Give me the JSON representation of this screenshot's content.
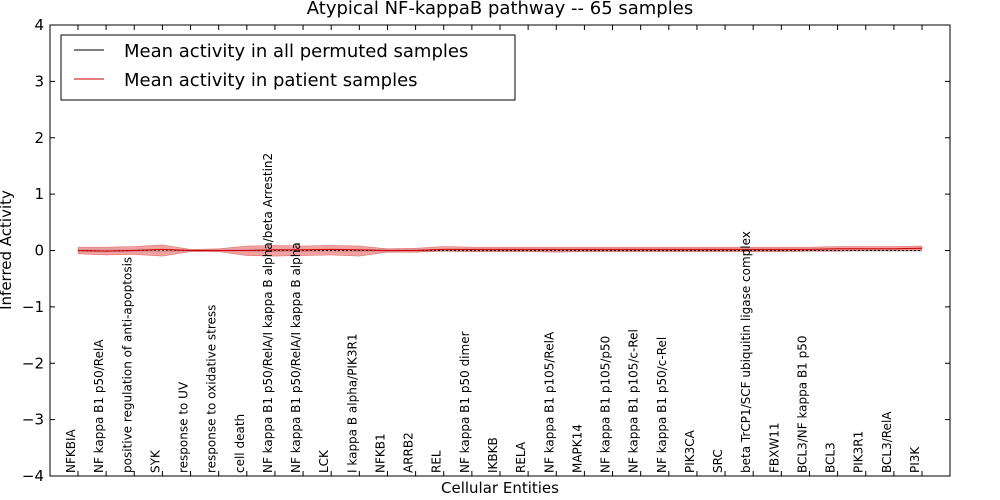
{
  "chart_data": {
    "type": "line",
    "title": "Atypical NF-kappaB pathway -- 65 samples",
    "xlabel": "Cellular Entities",
    "ylabel": "Inferred Activity",
    "ylim": [
      -4,
      4
    ],
    "yticks": [
      -4,
      -3,
      -2,
      -1,
      0,
      1,
      2,
      3,
      4
    ],
    "ytick_labels": [
      "−4",
      "−3",
      "−2",
      "−1",
      "0",
      "1",
      "2",
      "3",
      "4"
    ],
    "grid": false,
    "legend_position": "top-left",
    "categories": [
      "NFKBIA",
      "NF kappa B1 p50/RelA",
      "positive regulation of anti-apoptosis",
      "SYK",
      "response to UV",
      "response to oxidative stress",
      "cell death",
      "NF kappa B1 p50/RelA/I kappa B alpha/beta Arrestin2",
      "NF kappa B1 p50/RelA/I kappa B alpha",
      "LCK",
      "I kappa B alpha/PIK3R1",
      "NFKB1",
      "ARRB2",
      "REL",
      "NF kappa B1 p50 dimer",
      "IKBKB",
      "RELA",
      "NF kappa B1 p105/RelA",
      "MAPK14",
      "NF kappa B1 p105/p50",
      "NF kappa B1 p105/c-Rel",
      "NF kappa B1 p50/c-Rel",
      "PIK3CA",
      "SRC",
      "beta TrCP1/SCF ubiquitin ligase complex",
      "FBXW11",
      "BCL3/NF kappa B1 p50",
      "BCL3",
      "PIK3R1",
      "BCL3/RelA",
      "PI3K"
    ],
    "series": [
      {
        "name": "Mean activity in all permuted samples",
        "color": "#000000",
        "values": [
          0.0,
          -0.01,
          0.0,
          0.01,
          0.0,
          0.0,
          0.0,
          0.0,
          0.0,
          0.0,
          0.0,
          0.0,
          0.0,
          0.0,
          0.0,
          0.0,
          0.0,
          0.0,
          0.0,
          0.0,
          0.0,
          0.0,
          0.0,
          0.0,
          0.0,
          0.0,
          0.0,
          0.0,
          0.0,
          0.0,
          0.0
        ],
        "band_lower": [
          -0.03,
          -0.03,
          -0.03,
          -0.03,
          -0.02,
          -0.02,
          -0.03,
          -0.03,
          -0.03,
          -0.03,
          -0.03,
          -0.03,
          -0.03,
          -0.03,
          -0.03,
          -0.03,
          -0.03,
          -0.03,
          -0.03,
          -0.03,
          -0.03,
          -0.03,
          -0.03,
          -0.03,
          -0.03,
          -0.03,
          -0.03,
          -0.03,
          -0.03,
          -0.03,
          -0.03
        ],
        "band_upper": [
          0.03,
          0.03,
          0.03,
          0.03,
          0.02,
          0.02,
          0.03,
          0.03,
          0.03,
          0.03,
          0.03,
          0.03,
          0.03,
          0.03,
          0.03,
          0.03,
          0.03,
          0.03,
          0.03,
          0.03,
          0.03,
          0.03,
          0.03,
          0.03,
          0.03,
          0.03,
          0.03,
          0.03,
          0.03,
          0.03,
          0.03
        ]
      },
      {
        "name": "Mean activity in patient samples",
        "color": "#cc0000",
        "values": [
          0.0,
          -0.01,
          0.0,
          0.02,
          0.0,
          0.0,
          0.0,
          0.01,
          0.01,
          0.02,
          0.01,
          0.0,
          0.0,
          0.02,
          0.02,
          0.02,
          0.02,
          0.02,
          0.02,
          0.02,
          0.02,
          0.02,
          0.02,
          0.02,
          0.02,
          0.02,
          0.02,
          0.03,
          0.03,
          0.03,
          0.04
        ],
        "band_lower": [
          -0.06,
          -0.08,
          -0.07,
          -0.1,
          -0.02,
          -0.02,
          -0.09,
          -0.1,
          -0.09,
          -0.08,
          -0.1,
          -0.03,
          -0.03,
          -0.01,
          -0.02,
          -0.02,
          -0.02,
          -0.03,
          -0.02,
          -0.02,
          -0.02,
          -0.02,
          -0.02,
          -0.02,
          -0.02,
          -0.02,
          -0.01,
          -0.01,
          0.0,
          0.0,
          0.0
        ],
        "band_upper": [
          0.06,
          0.06,
          0.07,
          0.1,
          0.02,
          0.03,
          0.08,
          0.09,
          0.08,
          0.09,
          0.08,
          0.03,
          0.04,
          0.07,
          0.06,
          0.06,
          0.06,
          0.06,
          0.06,
          0.06,
          0.06,
          0.06,
          0.06,
          0.06,
          0.06,
          0.06,
          0.06,
          0.07,
          0.07,
          0.07,
          0.08
        ]
      }
    ]
  }
}
